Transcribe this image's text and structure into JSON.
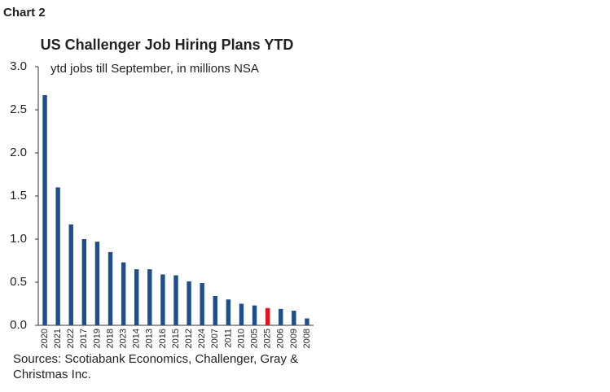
{
  "header": "Chart 2",
  "chart_data": {
    "type": "bar",
    "title": "US Challenger  Job Hiring Plans YTD",
    "subtitle": "ytd jobs till September, in millions NSA",
    "categories": [
      "2020",
      "2021",
      "2022",
      "2017",
      "2019",
      "2018",
      "2023",
      "2014",
      "2013",
      "2016",
      "2015",
      "2012",
      "2024",
      "2007",
      "2011",
      "2010",
      "2005",
      "2025",
      "2006",
      "2009",
      "2008"
    ],
    "values": [
      2.67,
      1.6,
      1.17,
      1.0,
      0.97,
      0.85,
      0.73,
      0.65,
      0.65,
      0.59,
      0.58,
      0.51,
      0.49,
      0.34,
      0.3,
      0.25,
      0.23,
      0.2,
      0.19,
      0.17,
      0.08
    ],
    "colors": [
      "#1f4e8c",
      "#1f4e8c",
      "#1f4e8c",
      "#1f4e8c",
      "#1f4e8c",
      "#1f4e8c",
      "#1f4e8c",
      "#1f4e8c",
      "#1f4e8c",
      "#1f4e8c",
      "#1f4e8c",
      "#1f4e8c",
      "#1f4e8c",
      "#1f4e8c",
      "#1f4e8c",
      "#1f4e8c",
      "#1f4e8c",
      "#e3141f",
      "#1f4e8c",
      "#1f4e8c",
      "#1f4e8c"
    ],
    "ylim": [
      0,
      3
    ],
    "yticks": [
      {
        "value": 0,
        "label": "0.0"
      },
      0.5,
      {
        "value": 1,
        "label": "1.0"
      },
      1.5,
      {
        "value": 2,
        "label": "2.0"
      },
      2.5,
      {
        "value": 3,
        "label": "3.0"
      }
    ],
    "grid": false,
    "source": "Sources: Scotiabank Economics, Challenger, Gray & Christmas Inc."
  }
}
